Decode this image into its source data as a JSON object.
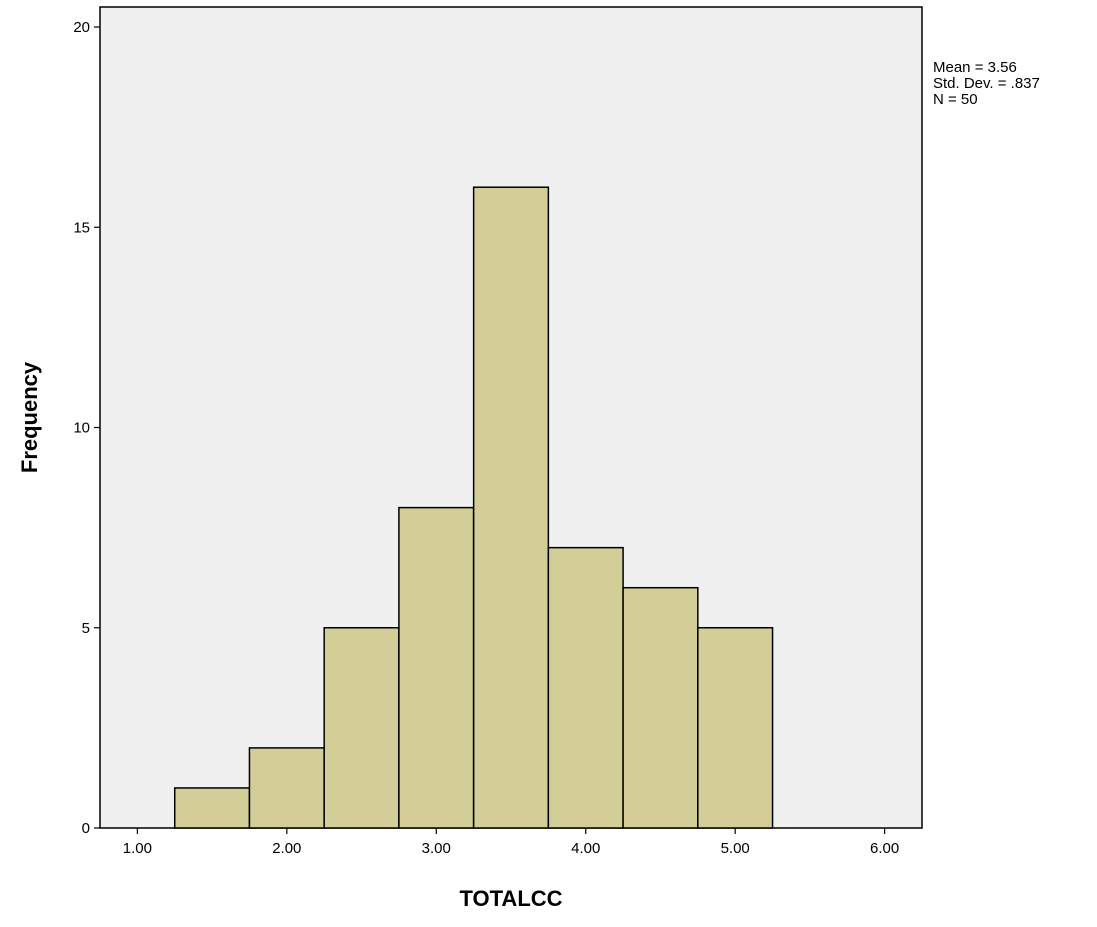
{
  "colors": {
    "plot_background": "#f0f0f0",
    "bar_fill": "#d3ce97",
    "bar_stroke": "#000000",
    "axis": "#000000"
  },
  "chart_data": {
    "type": "bar",
    "subtype": "histogram",
    "xlabel": "TOTALCC",
    "ylabel": "Frequency",
    "xlim": [
      0.75,
      6.25
    ],
    "ylim": [
      0,
      20.5
    ],
    "x_ticks": [
      1.0,
      2.0,
      3.0,
      4.0,
      5.0,
      6.0
    ],
    "x_tick_labels": [
      "1.00",
      "2.00",
      "3.00",
      "4.00",
      "5.00",
      "6.00"
    ],
    "y_ticks": [
      0,
      5,
      10,
      15,
      20
    ],
    "y_tick_labels": [
      "0",
      "5",
      "10",
      "15",
      "20"
    ],
    "bins": [
      {
        "start": 1.25,
        "end": 1.75,
        "count": 1
      },
      {
        "start": 1.75,
        "end": 2.25,
        "count": 2
      },
      {
        "start": 2.25,
        "end": 2.75,
        "count": 5
      },
      {
        "start": 2.75,
        "end": 3.25,
        "count": 8
      },
      {
        "start": 3.25,
        "end": 3.75,
        "count": 16
      },
      {
        "start": 3.75,
        "end": 4.25,
        "count": 7
      },
      {
        "start": 4.25,
        "end": 4.75,
        "count": 6
      },
      {
        "start": 4.75,
        "end": 5.25,
        "count": 5
      }
    ],
    "grid": false,
    "stats": {
      "mean": "Mean = 3.56",
      "std_dev": "Std. Dev. = .837",
      "n": "N = 50"
    }
  }
}
